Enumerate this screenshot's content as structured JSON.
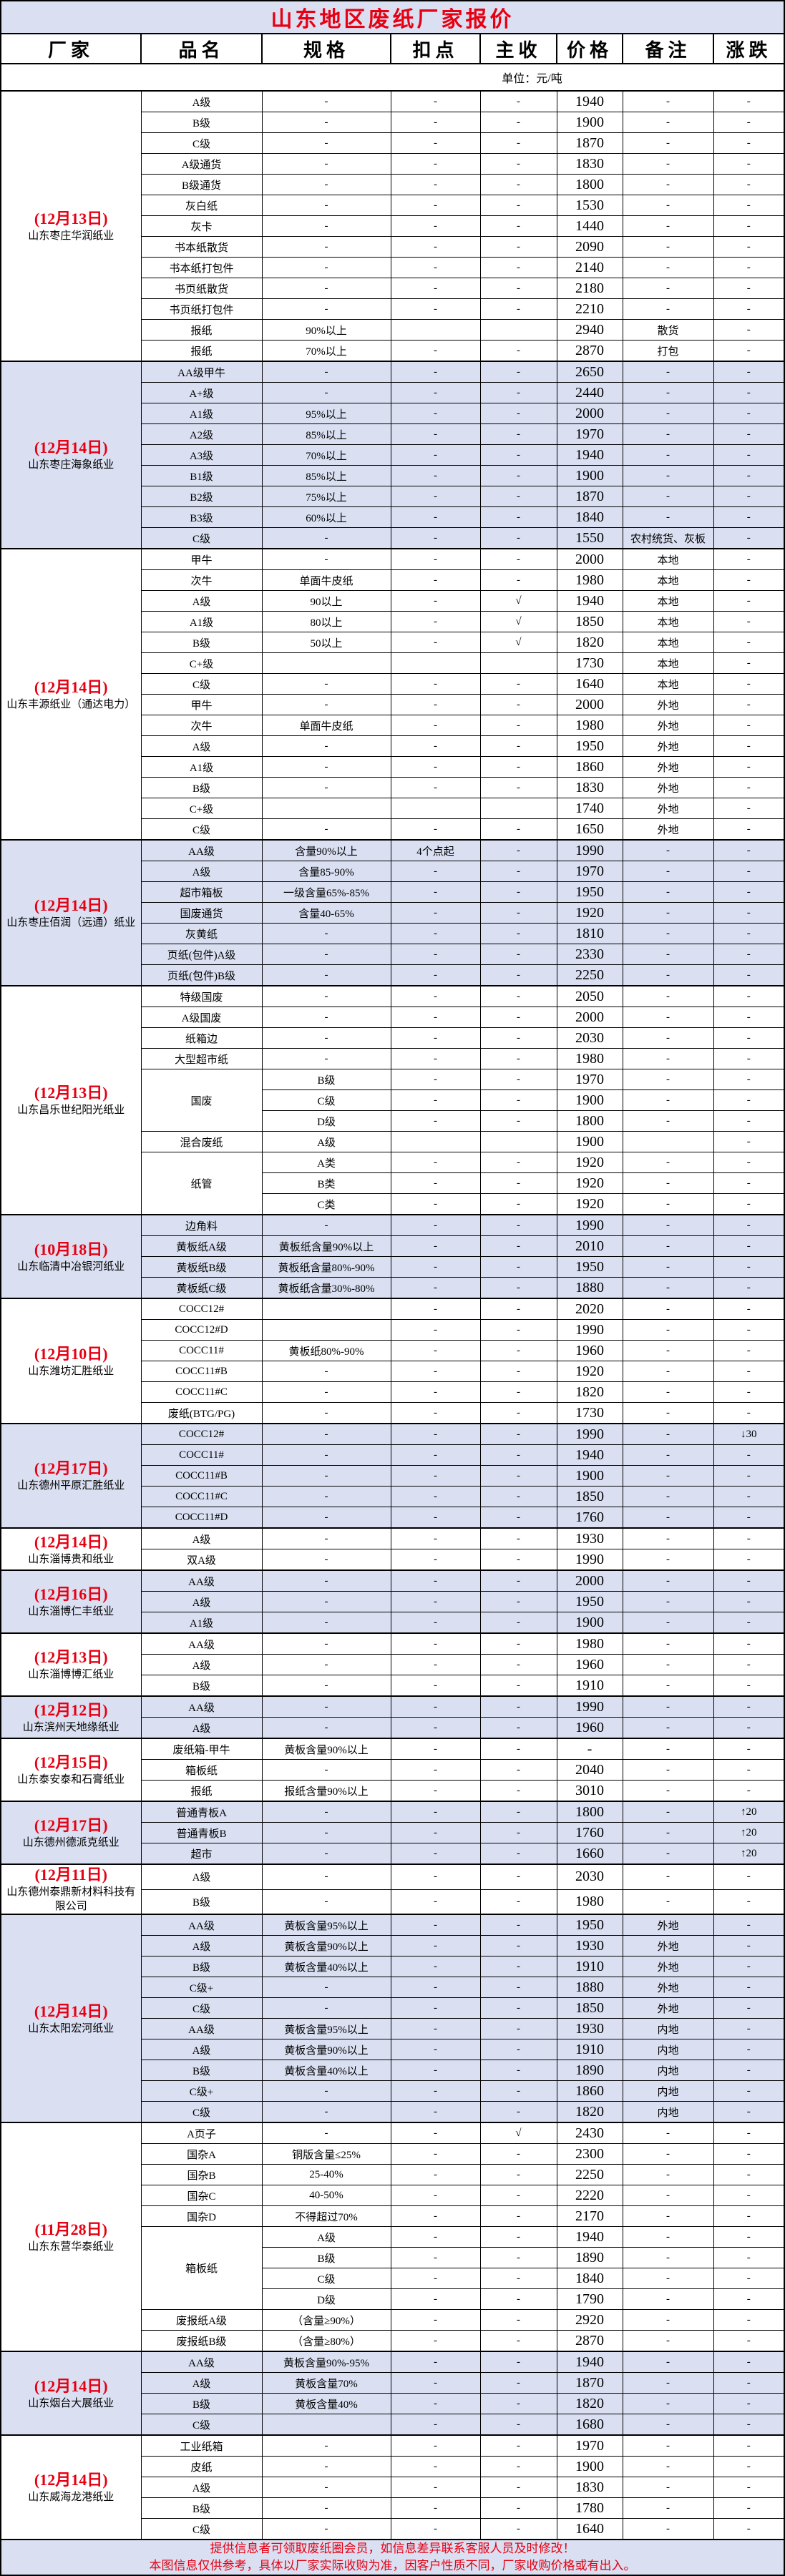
{
  "title": "山东地区废纸厂家报价",
  "headers": [
    "厂家",
    "品名",
    "规格",
    "扣点",
    "主收",
    "价格",
    "备注",
    "涨跌"
  ],
  "unit": "单位：元/吨",
  "colors": {
    "title": "#e60012",
    "date": "#e60012",
    "band": "#dae0f2"
  },
  "groups": [
    {
      "date": "(12月13日)",
      "company": "山东枣庄华润纸业",
      "band": false,
      "rows": [
        [
          "A级",
          "-",
          "-",
          "-",
          "1940",
          "-",
          "-"
        ],
        [
          "B级",
          "-",
          "-",
          "-",
          "1900",
          "-",
          "-"
        ],
        [
          "C级",
          "-",
          "-",
          "-",
          "1870",
          "-",
          "-"
        ],
        [
          "A级通货",
          "-",
          "-",
          "-",
          "1830",
          "-",
          "-"
        ],
        [
          "B级通货",
          "-",
          "-",
          "-",
          "1800",
          "-",
          "-"
        ],
        [
          "灰白纸",
          "-",
          "-",
          "-",
          "1530",
          "-",
          "-"
        ],
        [
          "灰卡",
          "-",
          "-",
          "-",
          "1440",
          "-",
          "-"
        ],
        [
          "书本纸散货",
          "-",
          "-",
          "-",
          "2090",
          "-",
          "-"
        ],
        [
          "书本纸打包件",
          "-",
          "-",
          "-",
          "2140",
          "-",
          "-"
        ],
        [
          "书页纸散货",
          "-",
          "-",
          "-",
          "2180",
          "-",
          "-"
        ],
        [
          "书页纸打包件",
          "-",
          "-",
          "-",
          "2210",
          "-",
          "-"
        ],
        [
          "报纸",
          "90%以上",
          "",
          "",
          "2940",
          "散货",
          "-"
        ],
        [
          "报纸",
          "70%以上",
          "-",
          "-",
          "2870",
          "打包",
          "-"
        ]
      ]
    },
    {
      "date": "(12月14日)",
      "company": "山东枣庄海象纸业",
      "band": true,
      "rows": [
        [
          "AA级甲牛",
          "-",
          "-",
          "-",
          "2650",
          "-",
          "-"
        ],
        [
          "A+级",
          "-",
          "-",
          "-",
          "2440",
          "-",
          "-"
        ],
        [
          "A1级",
          "95%以上",
          "-",
          "-",
          "2000",
          "-",
          "-"
        ],
        [
          "A2级",
          "85%以上",
          "-",
          "-",
          "1970",
          "-",
          "-"
        ],
        [
          "A3级",
          "70%以上",
          "-",
          "-",
          "1940",
          "-",
          "-"
        ],
        [
          "B1级",
          "85%以上",
          "-",
          "-",
          "1900",
          "-",
          "-"
        ],
        [
          "B2级",
          "75%以上",
          "-",
          "-",
          "1870",
          "-",
          "-"
        ],
        [
          "B3级",
          "60%以上",
          "-",
          "-",
          "1840",
          "-",
          "-"
        ],
        [
          "C级",
          "-",
          "-",
          "-",
          "1550",
          "农村统货、灰板",
          "-"
        ]
      ]
    },
    {
      "date": "(12月14日)",
      "company": "山东丰源纸业（通达电力）",
      "band": false,
      "rows": [
        [
          "甲牛",
          "-",
          "-",
          "-",
          "2000",
          "本地",
          "-"
        ],
        [
          "次牛",
          "单面牛皮纸",
          "-",
          "-",
          "1980",
          "本地",
          "-"
        ],
        [
          "A级",
          "90以上",
          "-",
          "√",
          "1940",
          "本地",
          "-"
        ],
        [
          "A1级",
          "80以上",
          "-",
          "√",
          "1850",
          "本地",
          "-"
        ],
        [
          "B级",
          "50以上",
          "-",
          "√",
          "1820",
          "本地",
          "-"
        ],
        [
          "C+级",
          "",
          "",
          "",
          "1730",
          "本地",
          "-"
        ],
        [
          "C级",
          "-",
          "-",
          "-",
          "1640",
          "本地",
          "-"
        ],
        [
          "甲牛",
          "-",
          "-",
          "-",
          "2000",
          "外地",
          "-"
        ],
        [
          "次牛",
          "单面牛皮纸",
          "-",
          "-",
          "1980",
          "外地",
          "-"
        ],
        [
          "A级",
          "-",
          "-",
          "-",
          "1950",
          "外地",
          "-"
        ],
        [
          "A1级",
          "-",
          "-",
          "-",
          "1860",
          "外地",
          "-"
        ],
        [
          "B级",
          "-",
          "-",
          "-",
          "1830",
          "外地",
          "-"
        ],
        [
          "C+级",
          "",
          "",
          "",
          "1740",
          "外地",
          "-"
        ],
        [
          "C级",
          "-",
          "-",
          "-",
          "1650",
          "外地",
          "-"
        ]
      ]
    },
    {
      "date": "(12月14日)",
      "company": "山东枣庄佰润（远通）纸业",
      "band": true,
      "rows": [
        [
          "AA级",
          "含量90%以上",
          "4个点起",
          "-",
          "1990",
          "-",
          "-"
        ],
        [
          "A级",
          "含量85-90%",
          "-",
          "-",
          "1970",
          "-",
          "-"
        ],
        [
          "超市箱板",
          "一级含量65%-85%",
          "-",
          "-",
          "1950",
          "-",
          "-"
        ],
        [
          "国废通货",
          "含量40-65%",
          "-",
          "-",
          "1920",
          "-",
          "-"
        ],
        [
          "灰黄纸",
          "-",
          "-",
          "-",
          "1810",
          "-",
          "-"
        ],
        [
          "页纸(包件)A级",
          "-",
          "-",
          "-",
          "2330",
          "-",
          "-"
        ],
        [
          "页纸(包件)B级",
          "-",
          "-",
          "-",
          "2250",
          "-",
          "-"
        ]
      ]
    },
    {
      "date": "(12月13日)",
      "company": "山东昌乐世纪阳光纸业",
      "band": false,
      "rows": [
        [
          "特级国废",
          "-",
          "-",
          "-",
          "2050",
          "-",
          "-"
        ],
        [
          "A级国废",
          "-",
          "-",
          "-",
          "2000",
          "-",
          "-"
        ],
        [
          "纸箱边",
          "-",
          "-",
          "-",
          "2030",
          "-",
          "-"
        ],
        [
          "大型超市纸",
          "-",
          "-",
          "-",
          "1980",
          "-",
          "-"
        ],
        [
          "国废",
          "B级",
          "-",
          "-",
          "1970",
          "-",
          "-"
        ],
        [
          null,
          "C级",
          "-",
          "-",
          "1900",
          "-",
          "-"
        ],
        [
          null,
          "D级",
          "-",
          "-",
          "1800",
          "-",
          "-"
        ],
        [
          "混合废纸",
          "A级",
          "",
          "",
          "1900",
          "",
          "-"
        ],
        [
          "纸管",
          "A类",
          "-",
          "-",
          "1920",
          "-",
          "-"
        ],
        [
          null,
          "B类",
          "-",
          "-",
          "1920",
          "-",
          "-"
        ],
        [
          null,
          "C类",
          "-",
          "-",
          "1920",
          "-",
          "-"
        ]
      ]
    },
    {
      "date": "(10月18日)",
      "company": "山东临清中冶银河纸业",
      "band": true,
      "rows": [
        [
          "边角料",
          "-",
          "-",
          "-",
          "1990",
          "-",
          "-"
        ],
        [
          "黄板纸A级",
          "黄板纸含量90%以上",
          "-",
          "-",
          "2010",
          "-",
          "-"
        ],
        [
          "黄板纸B级",
          "黄板纸含量80%-90%",
          "-",
          "-",
          "1950",
          "-",
          "-"
        ],
        [
          "黄板纸C级",
          "黄板纸含量30%-80%",
          "-",
          "-",
          "1880",
          "-",
          "-"
        ]
      ]
    },
    {
      "date": "(12月10日)",
      "company": "山东潍坊汇胜纸业",
      "band": false,
      "rows": [
        [
          "COCC12#",
          "",
          "-",
          "-",
          "2020",
          "-",
          "-"
        ],
        [
          "COCC12#D",
          "",
          "-",
          "-",
          "1990",
          "-",
          "-"
        ],
        [
          "COCC11#",
          "黄板纸80%-90%",
          "-",
          "-",
          "1960",
          "-",
          "-"
        ],
        [
          "COCC11#B",
          "-",
          "-",
          "-",
          "1920",
          "-",
          "-"
        ],
        [
          "COCC11#C",
          "-",
          "-",
          "-",
          "1820",
          "-",
          "-"
        ],
        [
          "废纸(BTG/PG)",
          "-",
          "-",
          "-",
          "1730",
          "-",
          "-"
        ]
      ]
    },
    {
      "date": "(12月17日)",
      "company": "山东德州平原汇胜纸业",
      "band": true,
      "rows": [
        [
          "COCC12#",
          "-",
          "-",
          "-",
          "1990",
          "-",
          "↓30"
        ],
        [
          "COCC11#",
          "-",
          "-",
          "-",
          "1940",
          "-",
          "-"
        ],
        [
          "COCC11#B",
          "-",
          "-",
          "-",
          "1900",
          "-",
          "-"
        ],
        [
          "COCC11#C",
          "-",
          "-",
          "-",
          "1850",
          "-",
          "-"
        ],
        [
          "COCC11#D",
          "-",
          "-",
          "-",
          "1760",
          "-",
          "-"
        ]
      ]
    },
    {
      "date": "(12月14日)",
      "company": "山东淄博贵和纸业",
      "band": false,
      "rows": [
        [
          "A级",
          "-",
          "-",
          "-",
          "1930",
          "-",
          "-"
        ],
        [
          "双A级",
          "-",
          "-",
          "-",
          "1990",
          "-",
          "-"
        ]
      ]
    },
    {
      "date": "(12月16日)",
      "company": "山东淄博仁丰纸业",
      "band": true,
      "rows": [
        [
          "AA级",
          "-",
          "-",
          "-",
          "2000",
          "-",
          "-"
        ],
        [
          "A级",
          "-",
          "-",
          "-",
          "1950",
          "-",
          "-"
        ],
        [
          "A1级",
          "-",
          "-",
          "-",
          "1900",
          "-",
          "-"
        ]
      ]
    },
    {
      "date": "(12月13日)",
      "company": "山东淄博博汇纸业",
      "band": false,
      "rows": [
        [
          "AA级",
          "-",
          "-",
          "-",
          "1980",
          "-",
          "-"
        ],
        [
          "A级",
          "-",
          "-",
          "-",
          "1960",
          "-",
          "-"
        ],
        [
          "B级",
          "-",
          "-",
          "-",
          "1910",
          "-",
          "-"
        ]
      ]
    },
    {
      "date": "(12月12日)",
      "company": "山东滨州天地缘纸业",
      "band": true,
      "rows": [
        [
          "AA级",
          "-",
          "-",
          "-",
          "1990",
          "-",
          "-"
        ],
        [
          "A级",
          "-",
          "-",
          "-",
          "1960",
          "-",
          "-"
        ]
      ]
    },
    {
      "date": "(12月15日)",
      "company": "山东泰安泰和石膏纸业",
      "band": false,
      "rows": [
        [
          "废纸箱-甲牛",
          "黄板含量90%以上",
          "-",
          "-",
          "-",
          "-",
          "-"
        ],
        [
          "箱板纸",
          "-",
          "-",
          "-",
          "2040",
          "-",
          "-"
        ],
        [
          "报纸",
          "报纸含量90%以上",
          "-",
          "-",
          "3010",
          "-",
          "-"
        ]
      ]
    },
    {
      "date": "(12月17日)",
      "company": "山东德州德派克纸业",
      "band": true,
      "rows": [
        [
          "普通青板A",
          "-",
          "-",
          "-",
          "1800",
          "-",
          "↑20"
        ],
        [
          "普通青板B",
          "-",
          "-",
          "-",
          "1760",
          "-",
          "↑20"
        ],
        [
          "超市",
          "-",
          "-",
          "-",
          "1660",
          "-",
          "↑20"
        ]
      ]
    },
    {
      "date": "(12月11日)",
      "company": "山东德州泰鼎新材料科技有限公司",
      "band": false,
      "rows": [
        [
          "A级",
          "-",
          "-",
          "-",
          "2030",
          "-",
          "-"
        ],
        [
          "B级",
          "-",
          "-",
          "-",
          "1980",
          "-",
          "-"
        ]
      ]
    },
    {
      "date": "(12月14日)",
      "company": "山东太阳宏河纸业",
      "band": true,
      "rows": [
        [
          "AA级",
          "黄板含量95%以上",
          "-",
          "-",
          "1950",
          "外地",
          "-"
        ],
        [
          "A级",
          "黄板含量90%以上",
          "-",
          "-",
          "1930",
          "外地",
          "-"
        ],
        [
          "B级",
          "黄板含量40%以上",
          "-",
          "-",
          "1910",
          "外地",
          "-"
        ],
        [
          "C级+",
          "-",
          "-",
          "-",
          "1880",
          "外地",
          "-"
        ],
        [
          "C级",
          "-",
          "-",
          "-",
          "1850",
          "外地",
          "-"
        ],
        [
          "AA级",
          "黄板含量95%以上",
          "-",
          "-",
          "1930",
          "内地",
          "-"
        ],
        [
          "A级",
          "黄板含量90%以上",
          "-",
          "-",
          "1910",
          "内地",
          "-"
        ],
        [
          "B级",
          "黄板含量40%以上",
          "-",
          "-",
          "1890",
          "内地",
          "-"
        ],
        [
          "C级+",
          "-",
          "-",
          "-",
          "1860",
          "内地",
          "-"
        ],
        [
          "C级",
          "-",
          "-",
          "-",
          "1820",
          "内地",
          "-"
        ]
      ]
    },
    {
      "date": "(11月28日)",
      "company": "山东东营华泰纸业",
      "band": false,
      "rows": [
        [
          "A页子",
          "-",
          "-",
          "√",
          "2430",
          "-",
          "-"
        ],
        [
          "国杂A",
          "铜版含量≤25%",
          "-",
          "-",
          "2300",
          "-",
          "-"
        ],
        [
          "国杂B",
          "25-40%",
          "-",
          "-",
          "2250",
          "-",
          "-"
        ],
        [
          "国杂C",
          "40-50%",
          "-",
          "-",
          "2220",
          "-",
          "-"
        ],
        [
          "国杂D",
          "不得超过70%",
          "-",
          "-",
          "2170",
          "-",
          "-"
        ],
        [
          "箱板纸",
          "A级",
          "-",
          "-",
          "1940",
          "-",
          "-"
        ],
        [
          null,
          "B级",
          "-",
          "-",
          "1890",
          "-",
          "-"
        ],
        [
          null,
          "C级",
          "-",
          "-",
          "1840",
          "-",
          "-"
        ],
        [
          null,
          "D级",
          "-",
          "-",
          "1790",
          "-",
          "-"
        ],
        [
          "废报纸A级",
          "（含量≥90%）",
          "-",
          "-",
          "2920",
          "-",
          "-"
        ],
        [
          "废报纸B级",
          "（含量≥80%）",
          "-",
          "-",
          "2870",
          "-",
          "-"
        ]
      ]
    },
    {
      "date": "(12月14日)",
      "company": "山东烟台大展纸业",
      "band": true,
      "rows": [
        [
          "AA级",
          "黄板含量90%-95%",
          "-",
          "-",
          "1940",
          "-",
          "-"
        ],
        [
          "A级",
          "黄板含量70%",
          "-",
          "-",
          "1870",
          "-",
          "-"
        ],
        [
          "B级",
          "黄板含量40%",
          "-",
          "-",
          "1820",
          "-",
          "-"
        ],
        [
          "C级",
          "",
          "-",
          "-",
          "1680",
          "-",
          "-"
        ]
      ]
    },
    {
      "date": "(12月14日)",
      "company": "山东威海龙港纸业",
      "band": false,
      "rows": [
        [
          "工业纸箱",
          "-",
          "-",
          "-",
          "1970",
          "-",
          "-"
        ],
        [
          "皮纸",
          "-",
          "-",
          "-",
          "1900",
          "-",
          "-"
        ],
        [
          "A级",
          "-",
          "-",
          "-",
          "1830",
          "-",
          "-"
        ],
        [
          "B级",
          "-",
          "-",
          "-",
          "1780",
          "-",
          "-"
        ],
        [
          "C级",
          "-",
          "-",
          "-",
          "1640",
          "-",
          "-"
        ]
      ]
    }
  ],
  "footer": {
    "line1": "提供信息者可领取废纸圈会员，如信息差异联系客服人员及时修改！",
    "line2": "本图信息仅供参考，具体以厂家实际收购为准，因客户性质不同，厂家收购价格或有出入。"
  }
}
